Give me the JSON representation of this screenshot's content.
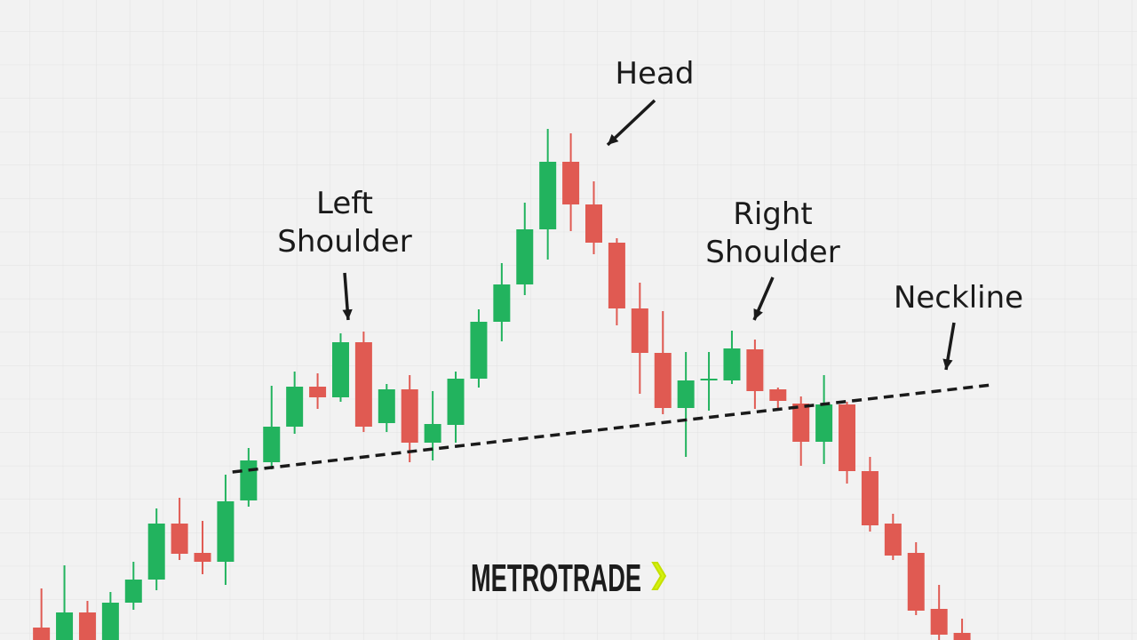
{
  "chart_data": {
    "type": "candlestick",
    "brand": "METROTRADE",
    "grid": true,
    "xlim": [
      -1.8,
      47.6
    ],
    "ylim": [
      0,
      720
    ],
    "up_color": "#22b35e",
    "down_color": "#e05a52",
    "ohlc": [
      [
        14,
        58,
        -2,
        -2
      ],
      [
        0,
        84,
        -2,
        31
      ],
      [
        31,
        44,
        -2,
        -2
      ],
      [
        -2,
        54,
        -2,
        42
      ],
      [
        42,
        88,
        34,
        68
      ],
      [
        68,
        148,
        56,
        131
      ],
      [
        131,
        160,
        90,
        97
      ],
      [
        98,
        134,
        74,
        88
      ],
      [
        88,
        186,
        62,
        156
      ],
      [
        157,
        216,
        150,
        202
      ],
      [
        200,
        286,
        192,
        240
      ],
      [
        240,
        302,
        232,
        285
      ],
      [
        285,
        300,
        260,
        273
      ],
      [
        273,
        345,
        268,
        335
      ],
      [
        335,
        347,
        234,
        240
      ],
      [
        244,
        288,
        234,
        282
      ],
      [
        282,
        298,
        200,
        222
      ],
      [
        222,
        280,
        202,
        243
      ],
      [
        242,
        302,
        222,
        294
      ],
      [
        294,
        372,
        284,
        358
      ],
      [
        358,
        424,
        336,
        400
      ],
      [
        400,
        492,
        388,
        462
      ],
      [
        462,
        575,
        428,
        538
      ],
      [
        538,
        570,
        460,
        490
      ],
      [
        490,
        516,
        434,
        447
      ],
      [
        447,
        452,
        354,
        373
      ],
      [
        373,
        402,
        277,
        323
      ],
      [
        323,
        370,
        254,
        261
      ],
      [
        261,
        324,
        206,
        292
      ],
      [
        292,
        324,
        258,
        294
      ],
      [
        292,
        348,
        288,
        328
      ],
      [
        327,
        338,
        260,
        280
      ],
      [
        282,
        284,
        260,
        269
      ],
      [
        266,
        274,
        196,
        223
      ],
      [
        223,
        298,
        198,
        265
      ],
      [
        265,
        268,
        176,
        190
      ],
      [
        190,
        206,
        122,
        129
      ],
      [
        131,
        142,
        90,
        95
      ],
      [
        98,
        110,
        28,
        33
      ],
      [
        35,
        62,
        0,
        6
      ],
      [
        8,
        24,
        -2,
        -2
      ]
    ],
    "neckline": {
      "name": "Neckline",
      "x": [
        8.3,
        41.27
      ],
      "values": [
        189,
        287
      ],
      "color": "#1a1a1a"
    },
    "annotations": [
      {
        "lines": [
          "Left",
          "Shoulder"
        ]
      },
      {
        "lines": [
          "Head"
        ]
      },
      {
        "lines": [
          "Right",
          "Shoulder"
        ]
      }
    ]
  }
}
